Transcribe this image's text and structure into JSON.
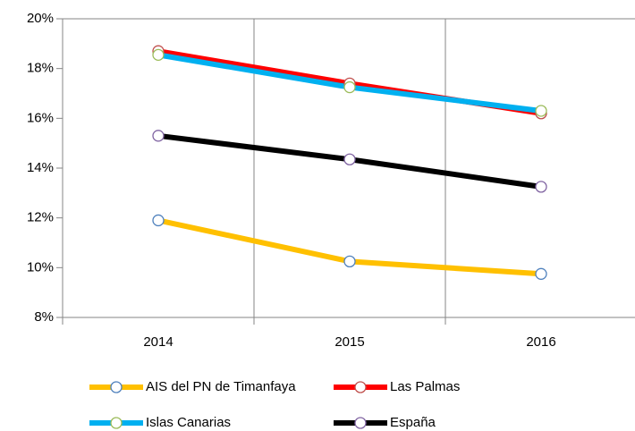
{
  "chart_data": {
    "type": "line",
    "categories": [
      "2014",
      "2015",
      "2016"
    ],
    "series": [
      {
        "name": "AIS del PN de Timanfaya",
        "color": "#ffc000",
        "marker_color": "#4f81bd",
        "values": [
          11.9,
          10.25,
          9.75
        ]
      },
      {
        "name": "Las Palmas",
        "color": "#ff0000",
        "marker_color": "#c0504d",
        "values": [
          18.7,
          17.4,
          16.2
        ]
      },
      {
        "name": "Islas Canarias",
        "color": "#00b0f0",
        "marker_color": "#9bbb59",
        "values": [
          18.55,
          17.25,
          16.3
        ]
      },
      {
        "name": "España",
        "color": "#000000",
        "marker_color": "#8064a2",
        "values": [
          15.3,
          14.35,
          13.25
        ]
      }
    ],
    "ylim": [
      8,
      20
    ],
    "yticks": [
      {
        "value": 8,
        "label": "8%"
      },
      {
        "value": 10,
        "label": "10%"
      },
      {
        "value": 12,
        "label": "12%"
      },
      {
        "value": 14,
        "label": "14%"
      },
      {
        "value": 16,
        "label": "16%"
      },
      {
        "value": 18,
        "label": "18%"
      },
      {
        "value": 20,
        "label": "20%"
      }
    ],
    "legend": "bottom"
  }
}
